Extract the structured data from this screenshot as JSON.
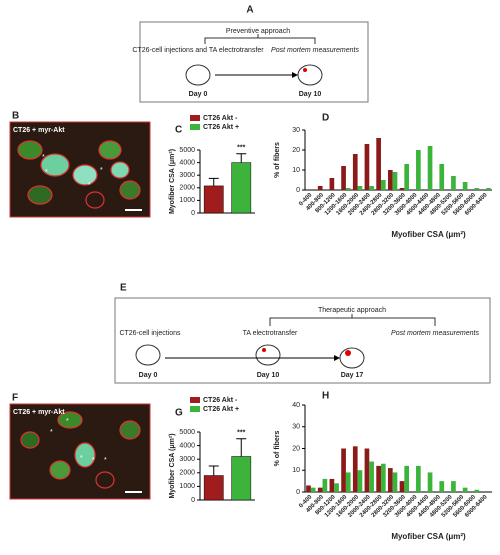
{
  "panel_labels": [
    "A",
    "B",
    "C",
    "D",
    "E",
    "F",
    "G",
    "H"
  ],
  "diagram_a": {
    "approach": "Preventive approach",
    "step_1": "CT26-cell injections and TA electrotransfer",
    "step_2": "Post mortem measurements",
    "day_start": "Day 0",
    "day_end": "Day 10"
  },
  "diagram_e": {
    "approach": "Therapeutic approach",
    "step_1": "CT26-cell injections",
    "step_2": "TA electrotransfer",
    "step_3": "Post mortem measurements",
    "day_start": "Day 0",
    "day_mid": "Day 10",
    "day_end": "Day 17"
  },
  "image_b": {
    "caption": "CT26 + myr-Akt",
    "marker": "*"
  },
  "image_f": {
    "caption": "CT26 + myr-Akt",
    "marker": "*"
  },
  "chart_data": [
    {
      "type": "bar",
      "ylabel": "Myofiber CSA (μm²)",
      "categories": [
        "CT26 Akt -",
        "CT26 Akt +"
      ],
      "values": [
        2150,
        4000
      ],
      "errors": [
        600,
        700
      ],
      "colors": [
        "#a11d1d",
        "#3cb43c"
      ],
      "ylim": [
        0,
        5000
      ],
      "yticks": [
        0,
        1000,
        2000,
        3000,
        4000,
        5000
      ],
      "annotation": "***"
    },
    {
      "type": "grouped_bar",
      "ylabel": "% of fibers",
      "xlabel": "Myofiber CSA (μm²)",
      "categories": [
        "0-400",
        "400-800",
        "800-1200",
        "1200-1600",
        "1600-2000",
        "2000-2400",
        "2400-2800",
        "2800-3200",
        "3200-3600",
        "3600-4000",
        "4000-4400",
        "4400-4800",
        "4800-5200",
        "5200-5600",
        "5600-6000",
        "6000-6400"
      ],
      "series": [
        {
          "color": "#8b1a1a",
          "values": [
            0,
            2,
            6,
            12,
            18,
            23,
            26,
            10,
            1,
            0,
            0,
            0,
            0,
            0,
            0,
            0
          ]
        },
        {
          "color": "#3cb43c",
          "values": [
            0,
            0,
            0,
            1,
            2,
            2,
            5,
            9,
            13,
            20,
            22,
            13,
            7,
            4,
            1,
            1
          ]
        }
      ],
      "ylim": [
        0,
        30
      ],
      "yticks": [
        0,
        10,
        20,
        30
      ]
    },
    {
      "type": "bar",
      "ylabel": "Myofiber CSA (μm²)",
      "categories": [
        "CT26 Akt -",
        "CT26 Akt +"
      ],
      "values": [
        1800,
        3200
      ],
      "errors": [
        700,
        1300
      ],
      "colors": [
        "#a11d1d",
        "#3cb43c"
      ],
      "ylim": [
        0,
        5000
      ],
      "yticks": [
        0,
        1000,
        2000,
        3000,
        4000,
        5000
      ],
      "annotation": "***"
    },
    {
      "type": "grouped_bar",
      "ylabel": "% of fibers",
      "xlabel": "Myofiber CSA (μm²)",
      "categories": [
        "0-400",
        "400-800",
        "800-1200",
        "1200-1600",
        "1600-2000",
        "2000-2400",
        "2400-2800",
        "2800-3200",
        "3200-3600",
        "3600-4000",
        "4000-4400",
        "4400-4800",
        "4800-5200",
        "5200-5600",
        "5600-6000",
        "6000-6400"
      ],
      "series": [
        {
          "color": "#8b1a1a",
          "values": [
            3,
            2,
            6,
            20,
            21,
            20,
            12,
            11,
            5,
            0,
            0,
            0,
            0,
            0,
            0,
            0
          ]
        },
        {
          "color": "#3cb43c",
          "values": [
            2,
            6,
            4,
            9,
            10,
            14,
            13,
            9,
            12,
            12,
            9,
            5,
            5,
            2,
            1,
            0
          ]
        }
      ],
      "ylim": [
        0,
        40
      ],
      "yticks": [
        0,
        10,
        20,
        30,
        40
      ]
    }
  ]
}
